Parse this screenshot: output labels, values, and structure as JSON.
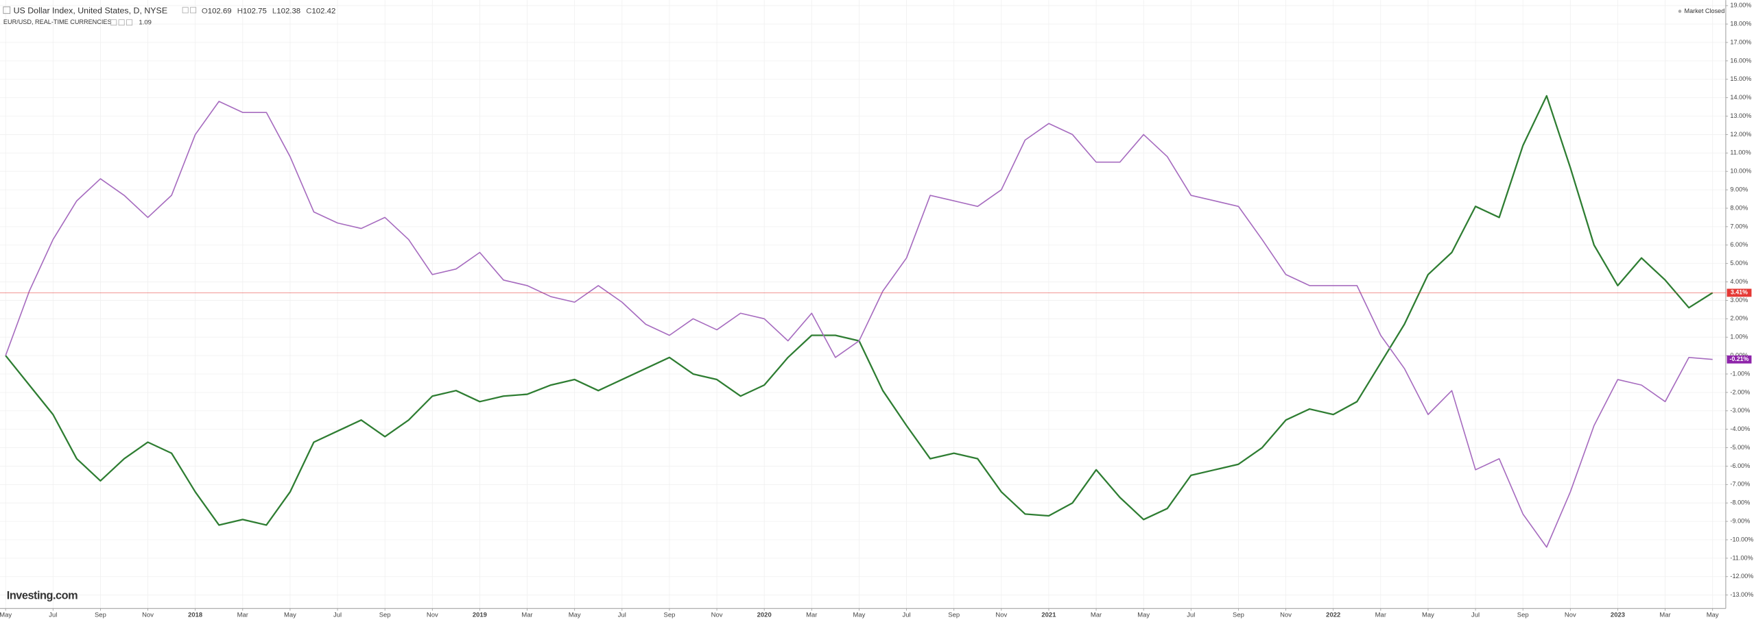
{
  "chart_data": {
    "type": "line",
    "x": [
      "2017-05",
      "2017-06",
      "2017-07",
      "2017-08",
      "2017-09",
      "2017-10",
      "2017-11",
      "2017-12",
      "2018-01",
      "2018-02",
      "2018-03",
      "2018-04",
      "2018-05",
      "2018-06",
      "2018-07",
      "2018-08",
      "2018-09",
      "2018-10",
      "2018-11",
      "2018-12",
      "2019-01",
      "2019-02",
      "2019-03",
      "2019-04",
      "2019-05",
      "2019-06",
      "2019-07",
      "2019-08",
      "2019-09",
      "2019-10",
      "2019-11",
      "2019-12",
      "2020-01",
      "2020-02",
      "2020-03",
      "2020-04",
      "2020-05",
      "2020-06",
      "2020-07",
      "2020-08",
      "2020-09",
      "2020-10",
      "2020-11",
      "2020-12",
      "2021-01",
      "2021-02",
      "2021-03",
      "2021-04",
      "2021-05",
      "2021-06",
      "2021-07",
      "2021-08",
      "2021-09",
      "2021-10",
      "2021-11",
      "2021-12",
      "2022-01",
      "2022-02",
      "2022-03",
      "2022-04",
      "2022-05",
      "2022-06",
      "2022-07",
      "2022-08",
      "2022-09",
      "2022-10",
      "2022-11",
      "2022-12",
      "2023-01",
      "2023-02",
      "2023-03",
      "2023-04",
      "2023-05"
    ],
    "series": [
      {
        "name": "US Dollar Index, United States, D, NYSE",
        "color": "#2e7d32",
        "label_color": "#e53935",
        "ohlc": [
          {
            "label": "O",
            "value": 102.69
          },
          {
            "label": "H",
            "value": 102.75
          },
          {
            "label": "L",
            "value": 102.38
          },
          {
            "label": "C",
            "value": 102.42
          }
        ],
        "last_label": "3.41%",
        "values": [
          0,
          -1.6,
          -3.2,
          -5.6,
          -6.8,
          -5.6,
          -4.7,
          -5.3,
          -7.4,
          -9.2,
          -8.9,
          -9.2,
          -7.4,
          -4.7,
          -4.1,
          -3.5,
          -4.4,
          -3.5,
          -2.2,
          -1.9,
          -2.5,
          -2.2,
          -2.1,
          -1.6,
          -1.3,
          -1.9,
          -1.3,
          -0.7,
          -0.1,
          -1.0,
          -1.3,
          -2.2,
          -1.6,
          -0.1,
          1.1,
          1.1,
          0.8,
          -1.9,
          -3.8,
          -5.6,
          -5.3,
          -5.6,
          -7.4,
          -8.6,
          -8.7,
          -8.0,
          -6.2,
          -7.7,
          -8.9,
          -8.3,
          -6.5,
          -6.2,
          -5.9,
          -5.0,
          -3.5,
          -2.9,
          -3.2,
          -2.5,
          -0.4,
          1.7,
          4.4,
          5.6,
          8.1,
          7.5,
          11.4,
          14.1,
          10.2,
          6.0,
          3.8,
          5.3,
          4.1,
          2.6,
          3.41
        ]
      },
      {
        "name": "EUR/USD, REAL-TIME CURRENCIES",
        "color": "#a66bbf",
        "label_color": "#8e24aa",
        "last_price": 1.09,
        "last_label": "-0.21%",
        "values": [
          0,
          3.5,
          6.3,
          8.4,
          9.6,
          8.7,
          7.5,
          8.7,
          12.0,
          13.8,
          13.2,
          13.2,
          10.8,
          7.8,
          7.2,
          6.9,
          7.5,
          6.3,
          4.4,
          4.7,
          5.6,
          4.1,
          3.8,
          3.2,
          2.9,
          3.8,
          2.9,
          1.7,
          1.1,
          2.0,
          1.4,
          2.3,
          2.0,
          0.8,
          2.3,
          -0.1,
          0.8,
          3.5,
          5.3,
          8.7,
          8.4,
          8.1,
          9.0,
          11.7,
          12.6,
          12.0,
          10.5,
          10.5,
          12.0,
          10.8,
          8.7,
          8.4,
          8.1,
          6.3,
          4.4,
          3.8,
          3.8,
          3.8,
          1.1,
          -0.7,
          -3.2,
          -1.9,
          -6.2,
          -5.6,
          -8.6,
          -10.4,
          -7.4,
          -3.8,
          -1.3,
          -1.6,
          -2.5,
          -0.1,
          -0.21
        ]
      }
    ],
    "ylim": [
      -13.73,
      19.3
    ],
    "yticks": [
      {
        "value": 19,
        "label": "19.00%"
      },
      {
        "value": 18,
        "label": "18.00%"
      },
      {
        "value": 17,
        "label": "17.00%"
      },
      {
        "value": 16,
        "label": "16.00%"
      },
      {
        "value": 15,
        "label": "15.00%"
      },
      {
        "value": 14,
        "label": "14.00%"
      },
      {
        "value": 13,
        "label": "13.00%"
      },
      {
        "value": 12,
        "label": "12.00%"
      },
      {
        "value": 11,
        "label": "11.00%"
      },
      {
        "value": 10,
        "label": "10.00%"
      },
      {
        "value": 9,
        "label": "9.00%"
      },
      {
        "value": 8,
        "label": "8.00%"
      },
      {
        "value": 7,
        "label": "7.00%"
      },
      {
        "value": 6,
        "label": "6.00%"
      },
      {
        "value": 5,
        "label": "5.00%"
      },
      {
        "value": 4,
        "label": "4.00%"
      },
      {
        "value": 3,
        "label": "3.00%"
      },
      {
        "value": 2,
        "label": "2.00%"
      },
      {
        "value": 1,
        "label": "1.00%"
      },
      {
        "value": 0,
        "label": "0.00%"
      },
      {
        "value": -1,
        "label": "-1.00%"
      },
      {
        "value": -2,
        "label": "-2.00%"
      },
      {
        "value": -3,
        "label": "-3.00%"
      },
      {
        "value": -4,
        "label": "-4.00%"
      },
      {
        "value": -5,
        "label": "-5.00%"
      },
      {
        "value": -6,
        "label": "-6.00%"
      },
      {
        "value": -7,
        "label": "-7.00%"
      },
      {
        "value": -8,
        "label": "-8.00%"
      },
      {
        "value": -9,
        "label": "-9.00%"
      },
      {
        "value": -10,
        "label": "-10.00%"
      },
      {
        "value": -11,
        "label": "-11.00%"
      },
      {
        "value": -12,
        "label": "-12.00%"
      },
      {
        "value": -13,
        "label": "-13.00%"
      }
    ],
    "xticks": [
      {
        "value": "2017-05",
        "label": "May"
      },
      {
        "value": "2017-07",
        "label": "Jul"
      },
      {
        "value": "2017-09",
        "label": "Sep"
      },
      {
        "value": "2017-11",
        "label": "Nov"
      },
      {
        "value": "2018-01",
        "label": "2018"
      },
      {
        "value": "2018-03",
        "label": "Mar"
      },
      {
        "value": "2018-05",
        "label": "May"
      },
      {
        "value": "2018-07",
        "label": "Jul"
      },
      {
        "value": "2018-09",
        "label": "Sep"
      },
      {
        "value": "2018-11",
        "label": "Nov"
      },
      {
        "value": "2019-01",
        "label": "2019"
      },
      {
        "value": "2019-03",
        "label": "Mar"
      },
      {
        "value": "2019-05",
        "label": "May"
      },
      {
        "value": "2019-07",
        "label": "Jul"
      },
      {
        "value": "2019-09",
        "label": "Sep"
      },
      {
        "value": "2019-11",
        "label": "Nov"
      },
      {
        "value": "2020-01",
        "label": "2020"
      },
      {
        "value": "2020-03",
        "label": "Mar"
      },
      {
        "value": "2020-05",
        "label": "May"
      },
      {
        "value": "2020-07",
        "label": "Jul"
      },
      {
        "value": "2020-09",
        "label": "Sep"
      },
      {
        "value": "2020-11",
        "label": "Nov"
      },
      {
        "value": "2021-01",
        "label": "2021"
      },
      {
        "value": "2021-03",
        "label": "Mar"
      },
      {
        "value": "2021-05",
        "label": "May"
      },
      {
        "value": "2021-07",
        "label": "Jul"
      },
      {
        "value": "2021-09",
        "label": "Sep"
      },
      {
        "value": "2021-11",
        "label": "Nov"
      },
      {
        "value": "2022-01",
        "label": "2022"
      },
      {
        "value": "2022-03",
        "label": "Mar"
      },
      {
        "value": "2022-05",
        "label": "May"
      },
      {
        "value": "2022-07",
        "label": "Jul"
      },
      {
        "value": "2022-09",
        "label": "Sep"
      },
      {
        "value": "2022-11",
        "label": "Nov"
      },
      {
        "value": "2023-01",
        "label": "2023"
      },
      {
        "value": "2023-03",
        "label": "Mar"
      },
      {
        "value": "2023-05",
        "label": "May"
      }
    ],
    "grid": true,
    "status": "Market Closed",
    "brand": "Investing.com"
  }
}
